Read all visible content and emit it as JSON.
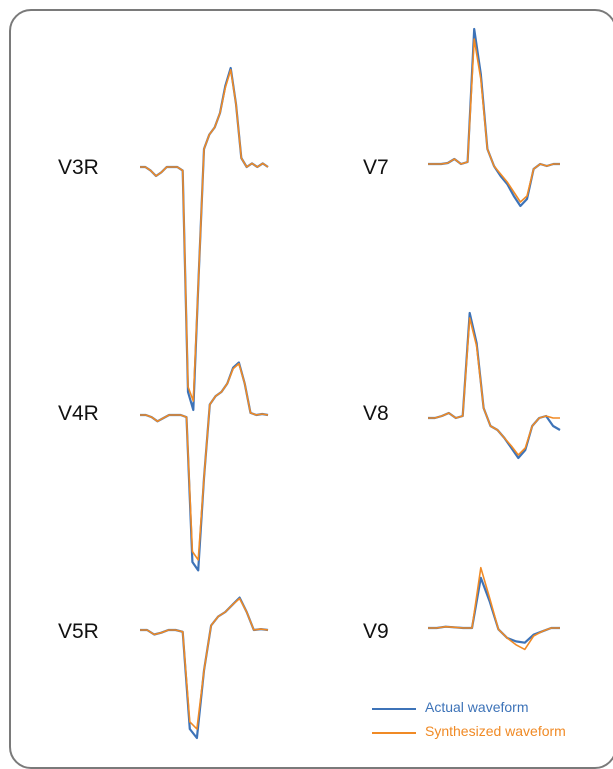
{
  "colors": {
    "actual": "#3d73b8",
    "synthesized": "#f08a25",
    "frame": "#7a7a7a",
    "text": "#111111"
  },
  "legend": {
    "actual_label": "Actual waveform",
    "synthesized_label": "Synthesized waveform"
  },
  "chart_data": [
    {
      "type": "line",
      "title": "V3R",
      "series": [
        {
          "name": "Actual waveform",
          "y": [
            0,
            0,
            -0.02,
            -0.05,
            -0.03,
            0,
            0,
            0,
            -0.02,
            -1.25,
            -1.35,
            -0.6,
            0.1,
            0.18,
            0.22,
            0.3,
            0.45,
            0.55,
            0.35,
            0.05,
            0,
            0.02,
            0,
            0.02,
            0
          ]
        },
        {
          "name": "Synthesized waveform",
          "y": [
            0,
            0,
            -0.02,
            -0.05,
            -0.03,
            0,
            0,
            0,
            -0.02,
            -1.22,
            -1.3,
            -0.6,
            0.1,
            0.18,
            0.22,
            0.3,
            0.44,
            0.54,
            0.35,
            0.05,
            0,
            0.02,
            0,
            0.02,
            0
          ]
        }
      ]
    },
    {
      "type": "line",
      "title": "V7",
      "series": [
        {
          "name": "Actual waveform",
          "y": [
            0,
            0,
            0,
            0.01,
            0.05,
            0,
            0.02,
            1.35,
            0.9,
            0.15,
            -0.02,
            -0.12,
            -0.2,
            -0.32,
            -0.42,
            -0.35,
            -0.05,
            0,
            -0.02,
            0,
            0
          ]
        },
        {
          "name": "Synthesized waveform",
          "y": [
            0,
            0,
            0,
            0.01,
            0.05,
            0,
            0.02,
            1.25,
            0.85,
            0.15,
            -0.02,
            -0.1,
            -0.18,
            -0.28,
            -0.38,
            -0.32,
            -0.05,
            0,
            -0.02,
            0,
            0
          ]
        }
      ]
    },
    {
      "type": "line",
      "title": "V4R",
      "series": [
        {
          "name": "Actual waveform",
          "y": [
            0,
            0,
            -0.02,
            -0.06,
            -0.03,
            0,
            0,
            0,
            -0.02,
            -1.4,
            -1.48,
            -0.6,
            0.1,
            0.18,
            0.22,
            0.3,
            0.45,
            0.5,
            0.3,
            0.02,
            0,
            0.01,
            0
          ]
        },
        {
          "name": "Synthesized waveform",
          "y": [
            0,
            0,
            -0.02,
            -0.06,
            -0.03,
            0,
            0,
            0,
            -0.02,
            -1.3,
            -1.38,
            -0.6,
            0.1,
            0.18,
            0.22,
            0.3,
            0.44,
            0.49,
            0.3,
            0.02,
            0,
            0.01,
            0
          ]
        }
      ]
    },
    {
      "type": "line",
      "title": "V8",
      "series": [
        {
          "name": "Actual waveform",
          "y": [
            0,
            0,
            0.02,
            0.05,
            0,
            0.02,
            1.05,
            0.75,
            0.1,
            -0.08,
            -0.12,
            -0.2,
            -0.3,
            -0.4,
            -0.32,
            -0.08,
            0,
            0.02,
            -0.08,
            -0.12
          ]
        },
        {
          "name": "Synthesized waveform",
          "y": [
            0,
            0,
            0.02,
            0.05,
            0,
            0.02,
            1.0,
            0.72,
            0.1,
            -0.08,
            -0.12,
            -0.2,
            -0.28,
            -0.37,
            -0.3,
            -0.08,
            0,
            0.02,
            0,
            0
          ]
        }
      ]
    },
    {
      "type": "line",
      "title": "V5R",
      "series": [
        {
          "name": "Actual waveform",
          "y": [
            0,
            0,
            -0.05,
            -0.03,
            0,
            0,
            -0.02,
            -1.1,
            -1.2,
            -0.45,
            0.05,
            0.15,
            0.2,
            0.28,
            0.36,
            0.2,
            0,
            0.01,
            0
          ]
        },
        {
          "name": "Synthesized waveform",
          "y": [
            0,
            0,
            -0.05,
            -0.03,
            0,
            0,
            -0.02,
            -1.02,
            -1.1,
            -0.45,
            0.05,
            0.15,
            0.2,
            0.28,
            0.35,
            0.2,
            0,
            0.01,
            0
          ]
        }
      ]
    },
    {
      "type": "line",
      "title": "V9",
      "series": [
        {
          "name": "Actual waveform",
          "y": [
            0,
            0,
            0.02,
            0.01,
            0,
            0,
            0.75,
            0.4,
            -0.02,
            -0.15,
            -0.2,
            -0.22,
            -0.1,
            -0.05,
            0,
            0
          ]
        },
        {
          "name": "Synthesized waveform",
          "y": [
            0,
            0,
            0.02,
            0.01,
            0,
            0,
            0.9,
            0.45,
            -0.02,
            -0.15,
            -0.25,
            -0.32,
            -0.12,
            -0.05,
            0,
            0
          ]
        }
      ]
    }
  ]
}
